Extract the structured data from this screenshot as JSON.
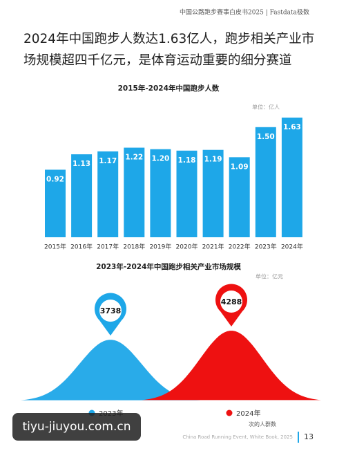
{
  "header": "中国公路跑步赛事白皮书2025 | Fastdata极数",
  "headline": [
    "2024年中国跑步人数达1.63亿人，跑步相关产业市",
    "场规模超四千亿元，是体育运动重要的细分赛道"
  ],
  "chart_data": [
    {
      "type": "bar",
      "title": "2015年-2024年中国跑步人数",
      "unit": "单位：亿人",
      "categories": [
        "2015年",
        "2016年",
        "2017年",
        "2018年",
        "2019年",
        "2020年",
        "2021年",
        "2022年",
        "2023年",
        "2024年"
      ],
      "values": [
        0.92,
        1.13,
        1.17,
        1.22,
        1.2,
        1.18,
        1.19,
        1.09,
        1.5,
        1.63
      ],
      "value_labels": [
        "0.92",
        "1.13",
        "1.17",
        "1.22",
        "1.20",
        "1.18",
        "1.19",
        "1.09",
        "1.50",
        "1.63"
      ],
      "color": "#1ea7e8"
    },
    {
      "type": "bell",
      "title": "2023年-2024年中国跑步相关产业市场规模",
      "unit": "单位：亿元",
      "series": [
        {
          "name": "2023年",
          "color": "#1ea7e8",
          "values": [
            3738
          ]
        },
        {
          "name": "2024年",
          "color": "#ee1111",
          "values": [
            4288
          ]
        }
      ]
    }
  ],
  "note": "次的人群数",
  "footer": {
    "source": "China Road Running Event, White Book, 2025",
    "page": "13"
  },
  "watermark": "tiyu-jiuyou.com.cn"
}
